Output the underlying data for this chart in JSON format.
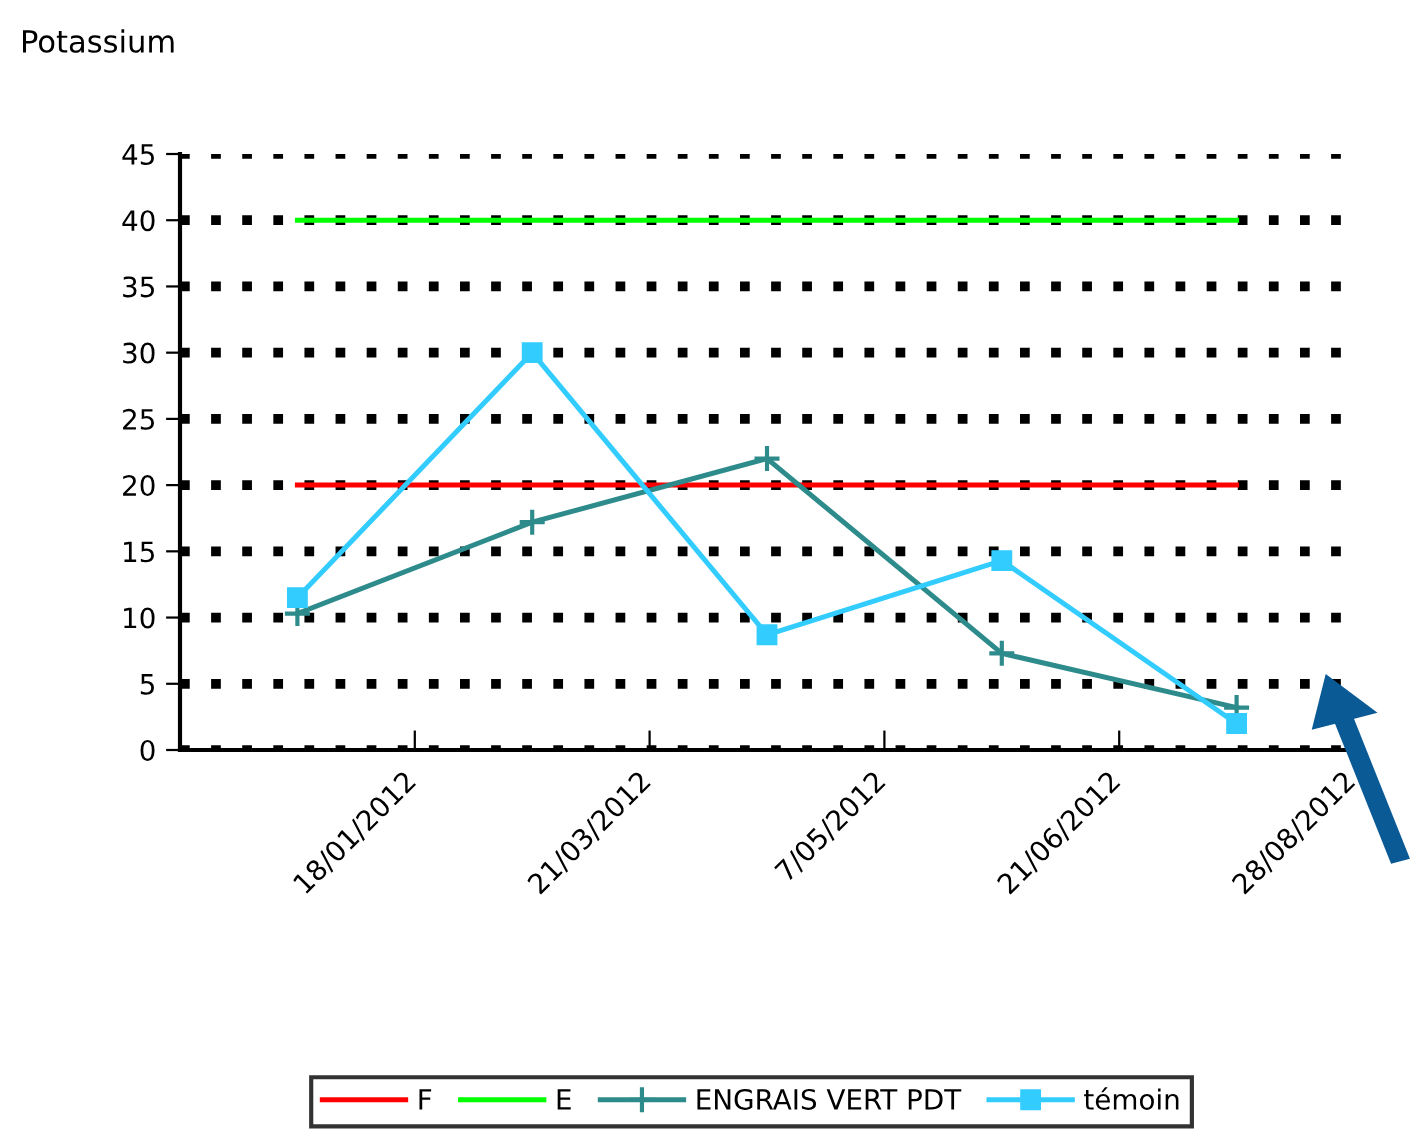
{
  "chart_data": {
    "type": "line",
    "title": "Potassium",
    "categories": [
      "18/01/2012",
      "21/03/2012",
      "7/05/2012",
      "21/06/2012",
      "28/08/2012"
    ],
    "series": [
      {
        "name": "F",
        "color": "#ff0000",
        "values": [
          20,
          20,
          20,
          20,
          20
        ],
        "marker": "none"
      },
      {
        "name": "E",
        "color": "#00ff00",
        "values": [
          40,
          40,
          40,
          40,
          40
        ],
        "marker": "none"
      },
      {
        "name": "ENGRAIS VERT PDT",
        "color": "#2e8b8b",
        "values": [
          10.3,
          17.2,
          22,
          7.3,
          3.2
        ],
        "marker": "cross"
      },
      {
        "name": "témoin",
        "color": "#33ccff",
        "values": [
          11.5,
          30,
          8.7,
          14.3,
          2
        ],
        "marker": "square"
      }
    ],
    "ylim": [
      0,
      45
    ],
    "yticks": [
      0,
      5,
      10,
      15,
      20,
      25,
      30,
      35,
      40,
      45
    ],
    "grid": "y",
    "legend": "bottom"
  }
}
